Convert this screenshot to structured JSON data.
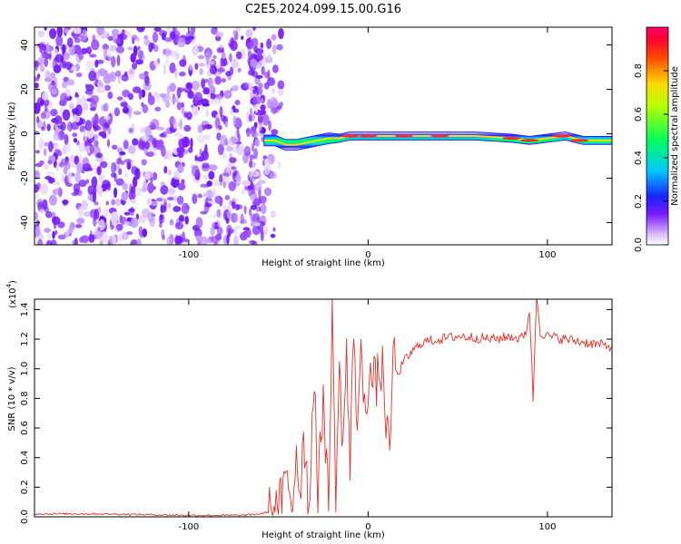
{
  "title": "C2E5.2024.099.15.00.G16",
  "chart_data": [
    {
      "type": "heatmap",
      "xlabel": "Height of straight line (km)",
      "ylabel": "Frequency (Hz)",
      "xlim": [
        -186,
        136
      ],
      "ylim": [
        -50,
        48
      ],
      "xticks": [
        -100,
        0,
        100
      ],
      "yticks": [
        -40,
        -20,
        0,
        20,
        40
      ],
      "noise_region_x": [
        -186,
        -58
      ],
      "signal_trace": {
        "x": [
          -58,
          -52,
          -46,
          -40,
          -34,
          -28,
          -22,
          -16,
          -10,
          -4,
          0,
          10,
          20,
          40,
          60,
          80,
          90,
          100,
          110,
          120,
          136
        ],
        "y": [
          -3,
          -3,
          -5,
          -5,
          -4,
          -3,
          -2,
          -2,
          -1,
          -1,
          -1,
          -1,
          -1,
          -1,
          -1,
          -2,
          -3,
          -2,
          -1,
          -3,
          -3
        ]
      },
      "colorbar": {
        "label": "Normalized spectral amplitude",
        "range": [
          0.0,
          1.0
        ],
        "ticks": [
          "0.0",
          "0.2",
          "0.4",
          "0.6",
          "0.8"
        ]
      }
    },
    {
      "type": "line",
      "xlabel": "Height of straight line (km)",
      "ylabel": "SNR (10 * v/v)",
      "y_multiplier": "(x10",
      "y_multiplier_exp": "4",
      "xlim": [
        -186,
        136
      ],
      "ylim": [
        0,
        1.47
      ],
      "xticks": [
        -100,
        0,
        100
      ],
      "yticks": [
        "0.0",
        "0.2",
        "0.4",
        "0.6",
        "0.8",
        "1.0",
        "1.2",
        "1.4"
      ],
      "color": "#e8302a",
      "series": [
        {
          "x": [
            -186,
            -150,
            -100,
            -70,
            -60,
            -50,
            -45,
            -42,
            -40,
            -38,
            -36,
            -33,
            -30,
            -28,
            -25,
            -22,
            -20,
            -18,
            -16,
            -14,
            -12,
            -10,
            -8,
            -6,
            -4,
            -2,
            0,
            2,
            4,
            8,
            12,
            14,
            16,
            20,
            25,
            30,
            40,
            50,
            60,
            70,
            80,
            85,
            88,
            90,
            92,
            94,
            96,
            100,
            110,
            120,
            136
          ],
          "y": [
            0.02,
            0.02,
            0.01,
            0.01,
            0.02,
            0.05,
            0.25,
            0.08,
            0.5,
            0.12,
            0.6,
            0.05,
            1.02,
            0.1,
            0.85,
            0.04,
            1.33,
            0.2,
            0.95,
            0.5,
            1.1,
            0.3,
            1.3,
            0.6,
            1.05,
            0.82,
            0.88,
            0.95,
            0.9,
            1.0,
            0.35,
            1.15,
            0.95,
            1.05,
            1.12,
            1.18,
            1.2,
            1.22,
            1.21,
            1.2,
            1.22,
            1.2,
            1.25,
            1.4,
            0.8,
            1.5,
            1.25,
            1.22,
            1.2,
            1.18,
            1.15
          ]
        }
      ]
    }
  ]
}
